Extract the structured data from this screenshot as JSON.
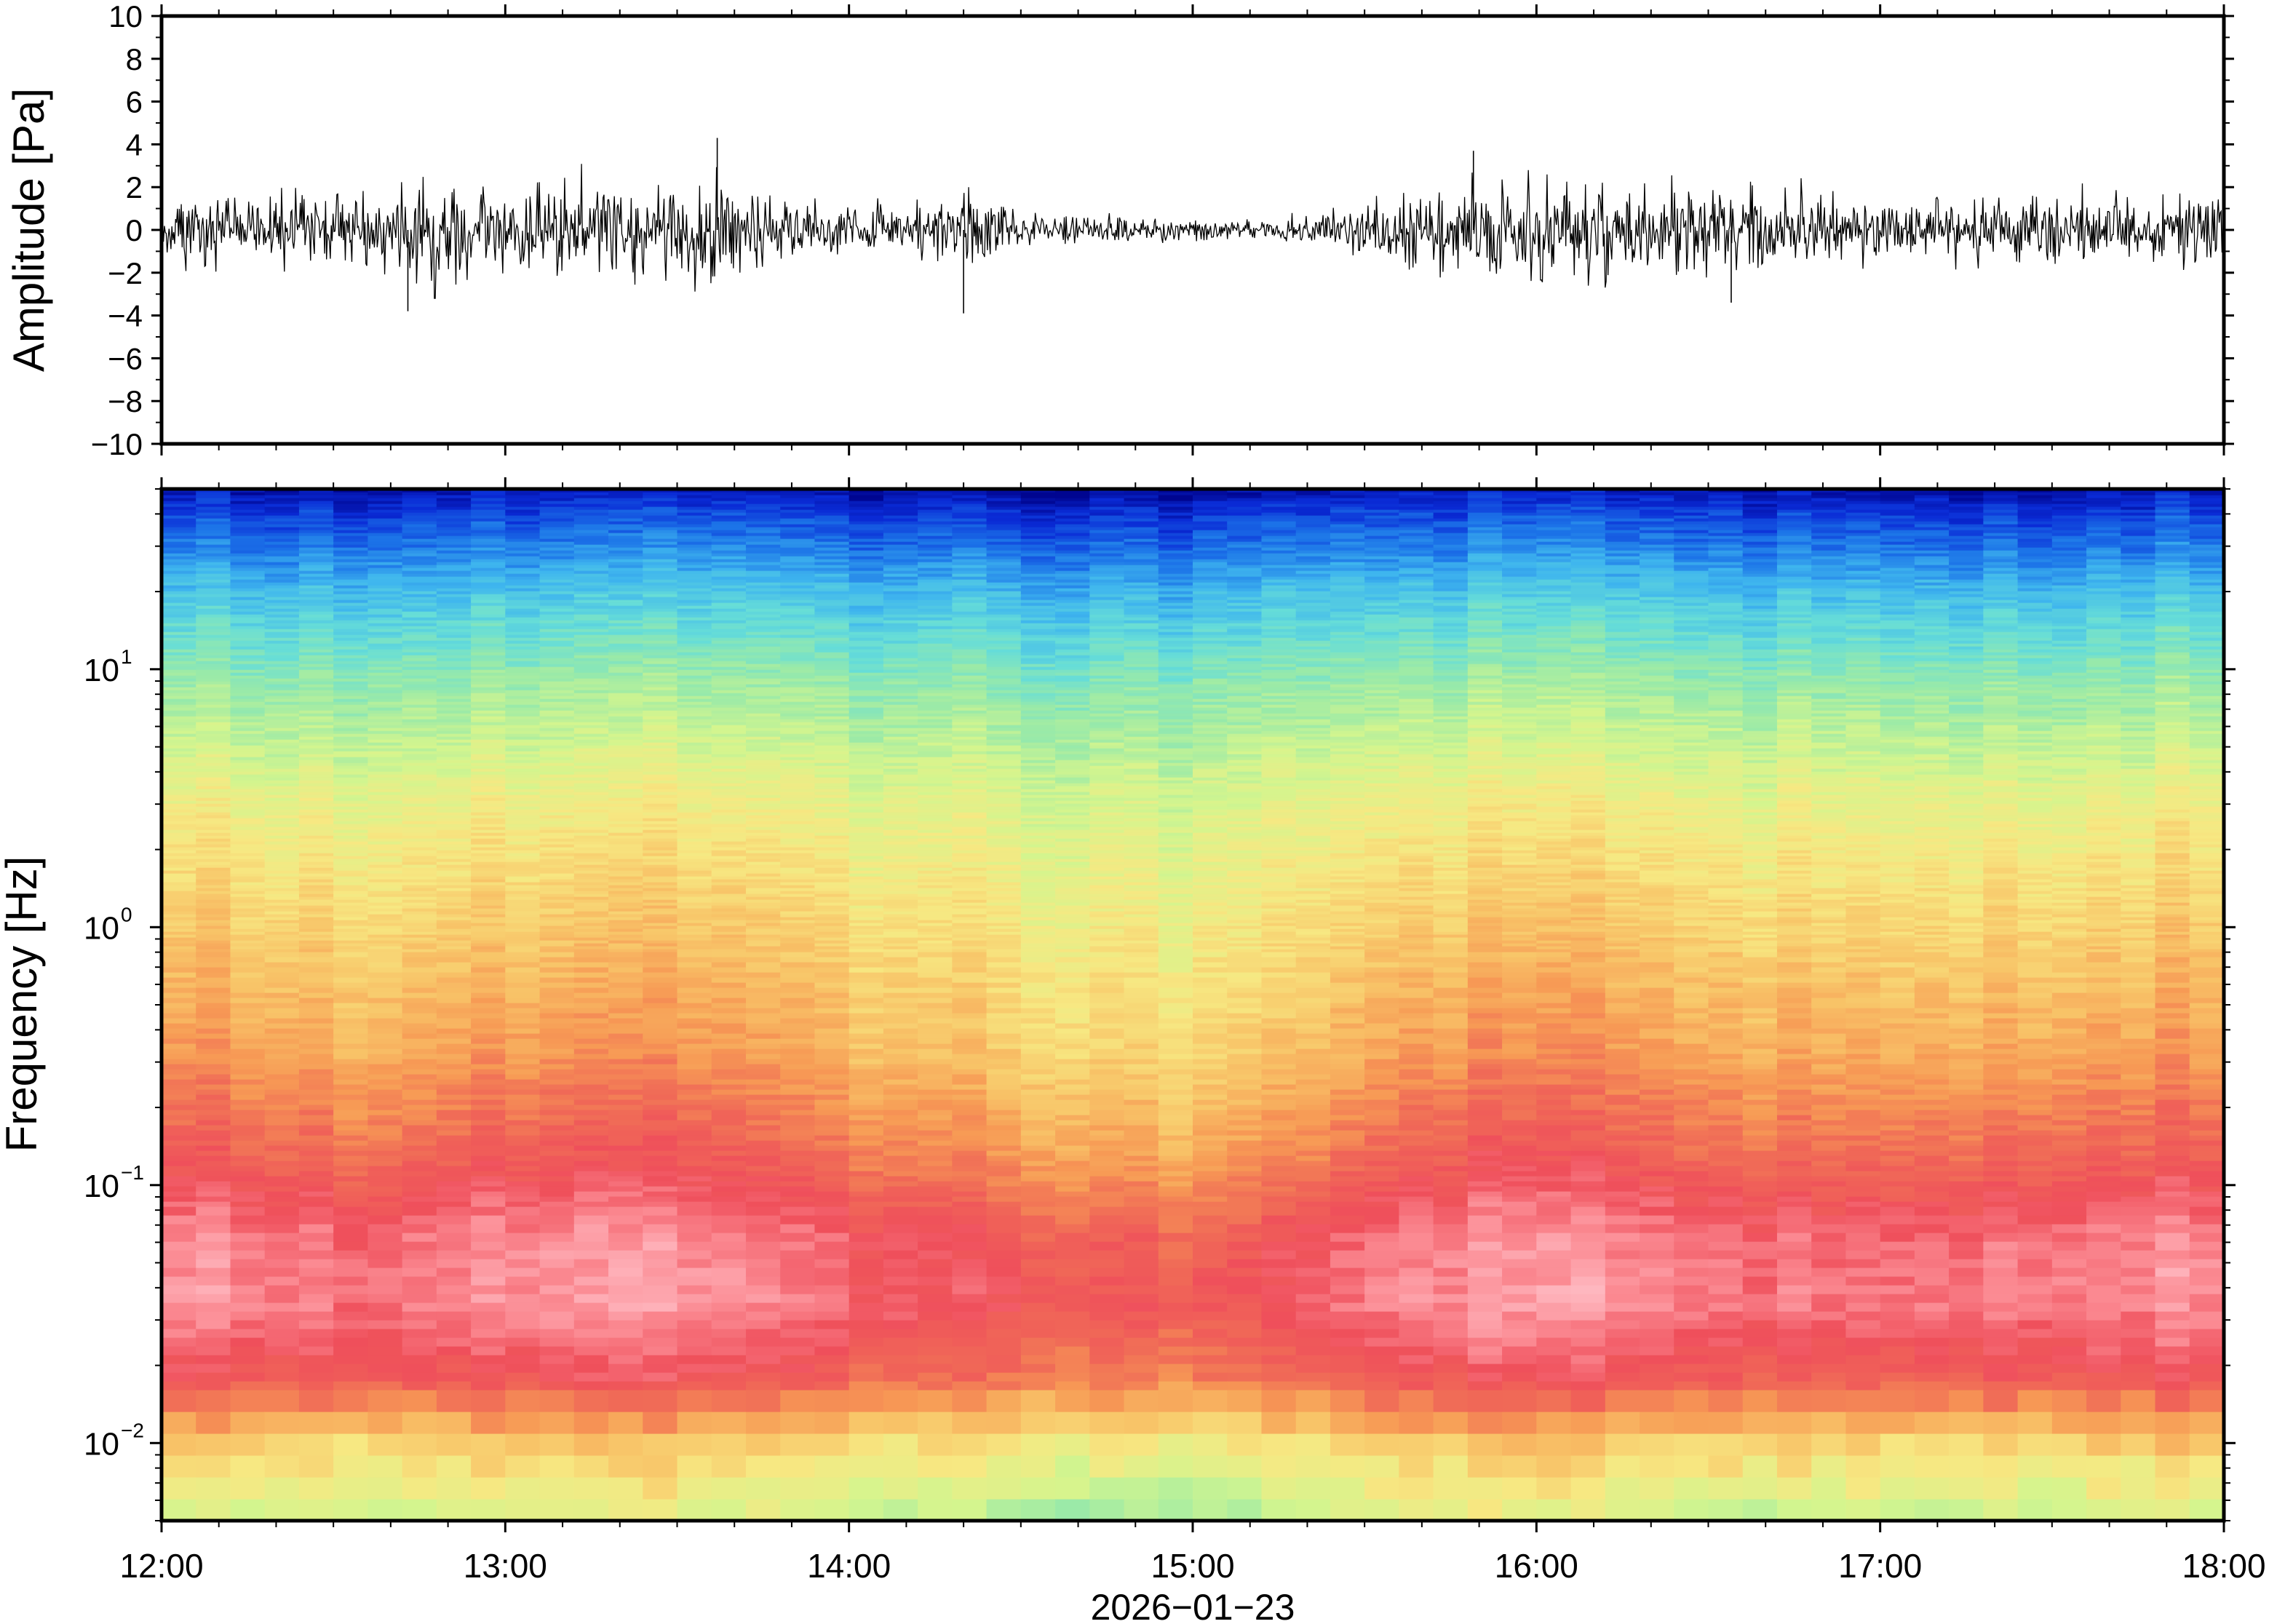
{
  "chart_data": [
    {
      "type": "line",
      "panel": "waveform",
      "ylabel": "Amplitude [Pa]",
      "xlabel": "2026−01−23",
      "xlim": [
        "12:00",
        "18:00"
      ],
      "ylim": [
        -10,
        10
      ],
      "yticks": [
        10,
        8,
        6,
        4,
        2,
        0,
        -2,
        -4,
        -6,
        -8,
        -10
      ],
      "ytick_labels": [
        "10",
        "8",
        "6",
        "4",
        "2",
        "0",
        "−2",
        "−4",
        "−6",
        "−8",
        "−10"
      ],
      "line_color": "#000000",
      "envelope_x_hours": [
        12.0,
        12.25,
        12.5,
        12.75,
        13.0,
        13.25,
        13.5,
        13.6,
        13.75,
        14.0,
        14.25,
        14.35,
        14.5,
        14.75,
        15.0,
        15.25,
        15.5,
        15.75,
        16.0,
        16.25,
        16.5,
        16.75,
        17.0,
        17.25,
        17.5,
        17.75,
        18.0
      ],
      "envelope_pa": [
        1.4,
        1.4,
        1.5,
        2.2,
        2.1,
        2.0,
        2.0,
        2.6,
        1.4,
        0.9,
        1.0,
        1.6,
        0.8,
        0.6,
        0.4,
        0.4,
        1.0,
        2.2,
        2.2,
        1.9,
        1.8,
        1.5,
        1.3,
        1.3,
        1.4,
        1.4,
        1.4
      ],
      "peaks": [
        {
          "x": "13:37",
          "y": 4.3
        },
        {
          "x": "14:20",
          "y": -3.9
        },
        {
          "x": "12:43",
          "y": -3.8
        },
        {
          "x": "15:49",
          "y": 3.7
        },
        {
          "x": "16:34",
          "y": -3.4
        }
      ]
    },
    {
      "type": "heatmap",
      "panel": "spectrogram",
      "ylabel": "Frequency [Hz]",
      "xlabel": "2026−01−23",
      "y_scale": "log",
      "ylim_hz": [
        0.005,
        50
      ],
      "yticks": [
        0.01,
        0.1,
        1,
        10
      ],
      "ytick_labels": [
        {
          "base": "10",
          "exp": "−2"
        },
        {
          "base": "10",
          "exp": "−1"
        },
        {
          "base": "10",
          "exp": "0"
        },
        {
          "base": "10",
          "exp": "1"
        }
      ],
      "xticks": [
        "12:00",
        "13:00",
        "14:00",
        "15:00",
        "16:00",
        "17:00",
        "18:00"
      ],
      "time_bins": 60,
      "colormap": [
        "#000590",
        "#0a2bd6",
        "#1c74e8",
        "#3fb6ee",
        "#66ddd8",
        "#9aeaa8",
        "#d4f58e",
        "#f7e882",
        "#f8c468",
        "#f79a55",
        "#f06a57",
        "#ef4f5b",
        "#fb8a92",
        "#ffc0c8"
      ],
      "activity_by_hour": [
        1.0,
        0.95,
        0.8,
        0.95,
        1.0,
        1.0,
        0.85,
        0.7,
        0.55,
        0.45,
        0.4,
        0.55,
        0.9,
        1.0,
        0.95,
        0.85,
        0.8,
        0.85,
        0.9,
        0.95,
        0.95
      ]
    }
  ]
}
